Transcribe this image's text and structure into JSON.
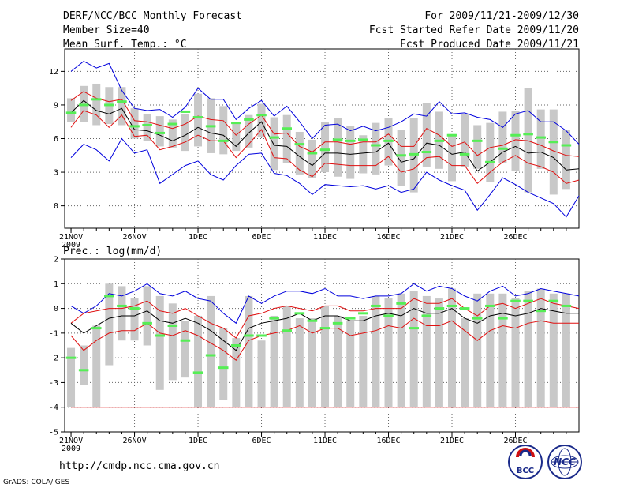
{
  "header": {
    "title": "DERF/NCC/BCC Monthly Forecast",
    "member_size": "Member Size=40",
    "variable": "Mean Surf. Temp.: °C",
    "forecast_period": "For 2009/11/21-2009/12/30",
    "started_refer": "Fcst Started Refer Date 2009/11/20",
    "produced": "Fcst Produced Date 2009/11/21"
  },
  "footer": {
    "url": "http://cmdp.ncc.cma.gov.cn",
    "credit": "GrADS: COLA/IGES",
    "logo_bcc": "BCC",
    "logo_ncc": "NCC"
  },
  "colors": {
    "box": "#c8c8c8",
    "ensemble_mean": "#000000",
    "spread": "#e01010",
    "extreme": "#0000dd",
    "observed": "#55ee55",
    "grid": "#666666"
  },
  "chart_data": [
    {
      "type": "line",
      "title": "Mean Surf. Temp.: °C",
      "x_start_year_label": "2009",
      "xtick_labels": [
        "21NOV",
        "26NOV",
        "1DEC",
        "6DEC",
        "11DEC",
        "16DEC",
        "21DEC",
        "26DEC"
      ],
      "ylim": [
        -2,
        14
      ],
      "yticks": [
        0,
        3,
        6,
        9,
        12
      ],
      "days": 40,
      "series": [
        {
          "name": "max",
          "values": [
            12.0,
            12.9,
            12.3,
            12.7,
            10.3,
            8.7,
            8.5,
            8.6,
            7.9,
            8.8,
            10.5,
            9.5,
            9.5,
            7.7,
            8.7,
            9.4,
            8.0,
            8.9,
            7.5,
            6.0,
            7.2,
            7.3,
            6.7,
            7.1,
            6.7,
            7.0,
            7.5,
            8.2,
            8.0,
            9.3,
            8.2,
            8.3,
            7.9,
            7.7,
            7.0,
            8.2,
            8.5,
            7.5,
            7.5,
            6.7,
            5.5
          ]
        },
        {
          "name": "upper",
          "values": [
            9.4,
            10.2,
            9.6,
            9.3,
            9.5,
            7.6,
            7.5,
            7.2,
            6.9,
            7.3,
            8.0,
            7.7,
            7.6,
            6.3,
            7.3,
            8.1,
            6.4,
            6.5,
            5.3,
            4.8,
            5.7,
            5.7,
            5.5,
            5.7,
            5.7,
            6.4,
            5.3,
            5.3,
            6.9,
            6.3,
            5.3,
            5.7,
            4.5,
            5.2,
            5.4,
            5.9,
            5.8,
            5.4,
            4.9,
            4.5,
            4.4
          ]
        },
        {
          "name": "mean",
          "values": [
            8.3,
            9.4,
            8.5,
            8.2,
            8.7,
            6.8,
            6.7,
            6.3,
            5.8,
            6.3,
            7.0,
            6.5,
            6.3,
            5.3,
            6.5,
            7.5,
            5.4,
            5.3,
            4.4,
            3.6,
            4.7,
            4.7,
            4.6,
            4.7,
            4.8,
            5.6,
            3.9,
            4.2,
            5.6,
            5.4,
            4.6,
            4.8,
            3.1,
            3.9,
            4.8,
            5.3,
            4.7,
            4.8,
            4.3,
            3.2,
            3.3
          ]
        },
        {
          "name": "lower",
          "values": [
            7.0,
            8.5,
            8.1,
            7.0,
            8.1,
            6.2,
            6.3,
            5.0,
            5.3,
            5.7,
            6.3,
            5.8,
            5.8,
            4.3,
            5.5,
            6.8,
            4.3,
            4.2,
            3.2,
            2.6,
            3.8,
            3.7,
            3.6,
            3.6,
            3.6,
            4.4,
            3.0,
            3.3,
            4.3,
            4.4,
            3.6,
            3.6,
            2.0,
            3.0,
            3.9,
            4.5,
            3.8,
            3.5,
            3.0,
            2.0,
            2.3
          ]
        },
        {
          "name": "min",
          "values": [
            4.3,
            5.5,
            5.0,
            4.0,
            6.0,
            4.7,
            5.0,
            2.0,
            2.8,
            3.6,
            4.0,
            2.8,
            2.3,
            3.6,
            4.6,
            4.7,
            2.9,
            2.7,
            2.0,
            1.0,
            1.9,
            1.8,
            1.7,
            1.8,
            1.5,
            1.8,
            1.2,
            1.5,
            3.0,
            2.3,
            1.8,
            1.4,
            -0.4,
            1.0,
            2.5,
            1.9,
            1.2,
            0.7,
            0.2,
            -1.0,
            0.9
          ]
        },
        {
          "name": "box_top",
          "values": [
            9.6,
            10.7,
            10.9,
            10.6,
            10.6,
            8.7,
            8.2,
            8.0,
            7.7,
            8.2,
            10.0,
            9.6,
            8.9,
            7.4,
            8.1,
            9.1,
            7.9,
            8.1,
            6.6,
            5.9,
            7.5,
            7.8,
            7.1,
            6.3,
            7.4,
            7.8,
            6.8,
            7.8,
            9.2,
            8.4,
            6.4,
            8.2,
            7.2,
            7.4,
            8.4,
            8.5,
            10.5,
            8.6,
            8.6,
            6.8,
            6.8
          ]
        },
        {
          "name": "box_bottom",
          "values": [
            7.5,
            7.5,
            7.2,
            7.3,
            7.2,
            6.0,
            5.8,
            5.3,
            5.2,
            4.9,
            5.3,
            4.7,
            4.6,
            4.9,
            5.2,
            6.1,
            3.2,
            3.8,
            2.8,
            2.5,
            3.0,
            2.6,
            2.4,
            2.9,
            2.8,
            3.6,
            1.8,
            1.2,
            3.5,
            3.3,
            2.2,
            3.5,
            3.3,
            2.1,
            3.8,
            3.1,
            1.2,
            3.3,
            1.0,
            1.5,
            1.2
          ]
        },
        {
          "name": "observed",
          "values": [
            8.3,
            9.0,
            9.5,
            9.0,
            9.3,
            7.1,
            7.2,
            6.5,
            7.3,
            8.4,
            7.9,
            7.1,
            5.8,
            7.4,
            7.7,
            8.1,
            6.1,
            6.9,
            5.5,
            4.7,
            5.0,
            5.9,
            5.8,
            5.9,
            5.4,
            5.8,
            4.5,
            4.6,
            4.8,
            5.8,
            6.3,
            4.6,
            5.8,
            3.9,
            5.1,
            6.3,
            6.4,
            6.1,
            5.7,
            5.4,
            4.0
          ]
        }
      ]
    },
    {
      "type": "line",
      "title": "Prec.: log(mm/d)",
      "x_start_year_label": "2009",
      "xtick_labels": [
        "21NOV",
        "26NOV",
        "1DEC",
        "6DEC",
        "11DEC",
        "16DEC",
        "21DEC",
        "26DEC"
      ],
      "ylim": [
        -5,
        2
      ],
      "yticks": [
        -5,
        -4,
        -3,
        -2,
        -1,
        0,
        1,
        2
      ],
      "days": 40,
      "series": [
        {
          "name": "max",
          "values": [
            0.1,
            -0.2,
            0.1,
            0.6,
            0.5,
            0.7,
            1.0,
            0.6,
            0.5,
            0.7,
            0.4,
            0.3,
            -0.2,
            -0.6,
            0.5,
            0.2,
            0.5,
            0.7,
            0.7,
            0.6,
            0.8,
            0.5,
            0.5,
            0.4,
            0.5,
            0.5,
            0.6,
            1.0,
            0.7,
            0.9,
            0.8,
            0.5,
            0.3,
            0.7,
            0.9,
            0.5,
            0.6,
            0.8,
            0.7,
            0.6,
            0.5
          ]
        },
        {
          "name": "upper",
          "values": [
            -0.6,
            -0.2,
            -0.1,
            0.0,
            0.0,
            0.1,
            0.3,
            -0.1,
            -0.2,
            0.0,
            -0.3,
            -0.6,
            -0.8,
            -1.2,
            -0.3,
            -0.2,
            0.0,
            0.1,
            0.0,
            -0.1,
            0.1,
            0.1,
            -0.1,
            -0.1,
            0.0,
            0.0,
            0.0,
            0.4,
            0.2,
            0.2,
            0.4,
            0.0,
            -0.3,
            0.1,
            0.2,
            0.0,
            0.2,
            0.4,
            0.2,
            0.1,
            0.0
          ]
        },
        {
          "name": "mean",
          "values": [
            -0.6,
            -1.0,
            -0.7,
            -0.4,
            -0.3,
            -0.3,
            -0.1,
            -0.5,
            -0.6,
            -0.4,
            -0.6,
            -0.9,
            -1.3,
            -1.7,
            -0.8,
            -0.6,
            -0.5,
            -0.4,
            -0.2,
            -0.5,
            -0.3,
            -0.3,
            -0.5,
            -0.5,
            -0.3,
            -0.2,
            -0.3,
            0.0,
            -0.2,
            -0.2,
            0.0,
            -0.4,
            -0.6,
            -0.3,
            -0.2,
            -0.3,
            -0.2,
            0.0,
            -0.1,
            -0.2,
            -0.2
          ]
        },
        {
          "name": "lower",
          "values": [
            -1.1,
            -1.7,
            -1.3,
            -1.0,
            -0.9,
            -0.9,
            -0.6,
            -1.0,
            -1.1,
            -0.9,
            -1.1,
            -1.4,
            -1.7,
            -2.1,
            -1.3,
            -1.1,
            -1.0,
            -0.9,
            -0.7,
            -1.0,
            -0.8,
            -0.8,
            -1.1,
            -1.0,
            -0.9,
            -0.7,
            -0.8,
            -0.4,
            -0.7,
            -0.7,
            -0.5,
            -0.9,
            -1.3,
            -0.9,
            -0.7,
            -0.8,
            -0.6,
            -0.5,
            -0.6,
            -0.6,
            -0.6
          ]
        },
        {
          "name": "min",
          "values": [
            -4,
            -4,
            -4,
            -4,
            -4,
            -4,
            -4,
            -4,
            -4,
            -4,
            -4,
            -4,
            -4,
            -4,
            -4,
            -4,
            -4,
            -4,
            -4,
            -4,
            -4,
            -4,
            -4,
            -4,
            -4,
            -4,
            -4,
            -4,
            -4,
            -4,
            -4,
            -4,
            -4,
            -4,
            -4,
            -4,
            -4,
            -4,
            -4,
            -4,
            -4
          ]
        },
        {
          "name": "box_top",
          "values": [
            -1.6,
            -1.5,
            -0.7,
            1.0,
            0.9,
            0.4,
            0.9,
            0.5,
            0.2,
            -0.5,
            -0.3,
            0.5,
            -0.8,
            -1.2,
            0.5,
            -1.3,
            -0.3,
            0.1,
            -0.4,
            -0.4,
            0.1,
            -0.3,
            -0.5,
            -0.3,
            0.5,
            0.4,
            0.6,
            0.7,
            0.5,
            0.4,
            0.8,
            -0.4,
            0.6,
            0.6,
            0.6,
            0.4,
            0.7,
            0.8,
            0.6,
            0.6,
            0.9
          ]
        },
        {
          "name": "box_bottom",
          "values": [
            -4.0,
            -3.1,
            -4.0,
            -2.3,
            -1.3,
            -1.3,
            -1.5,
            -3.3,
            -2.9,
            -2.8,
            -4.0,
            -4.0,
            -3.7,
            -4.0,
            -4.0,
            -4.0,
            -4.0,
            -4.0,
            -4.0,
            -4.0,
            -4.0,
            -4.0,
            -4.0,
            -4.0,
            -4.0,
            -4.0,
            -4.0,
            -4.0,
            -4.0,
            -4.0,
            -4.0,
            -4.0,
            -4.0,
            -4.0,
            -4.0,
            -4.0,
            -4.0,
            -4.0,
            -4.0,
            -4.0,
            -4.0
          ]
        },
        {
          "name": "observed",
          "values": [
            -2.0,
            -2.5,
            -0.8,
            0.5,
            0.1,
            0.0,
            -0.6,
            -1.1,
            -0.7,
            -1.3,
            -2.6,
            -1.9,
            -2.4,
            -1.5,
            -1.1,
            -1.1,
            -0.4,
            -0.9,
            -0.2,
            -0.5,
            -0.8,
            -0.6,
            -0.4,
            -0.2,
            0.1,
            -0.3,
            0.2,
            -0.8,
            -0.3,
            0.0,
            0.1,
            0.0,
            -0.4,
            0.1,
            -0.4,
            0.3,
            0.3,
            -0.1,
            0.3,
            0.1,
            0.1
          ]
        }
      ]
    }
  ]
}
